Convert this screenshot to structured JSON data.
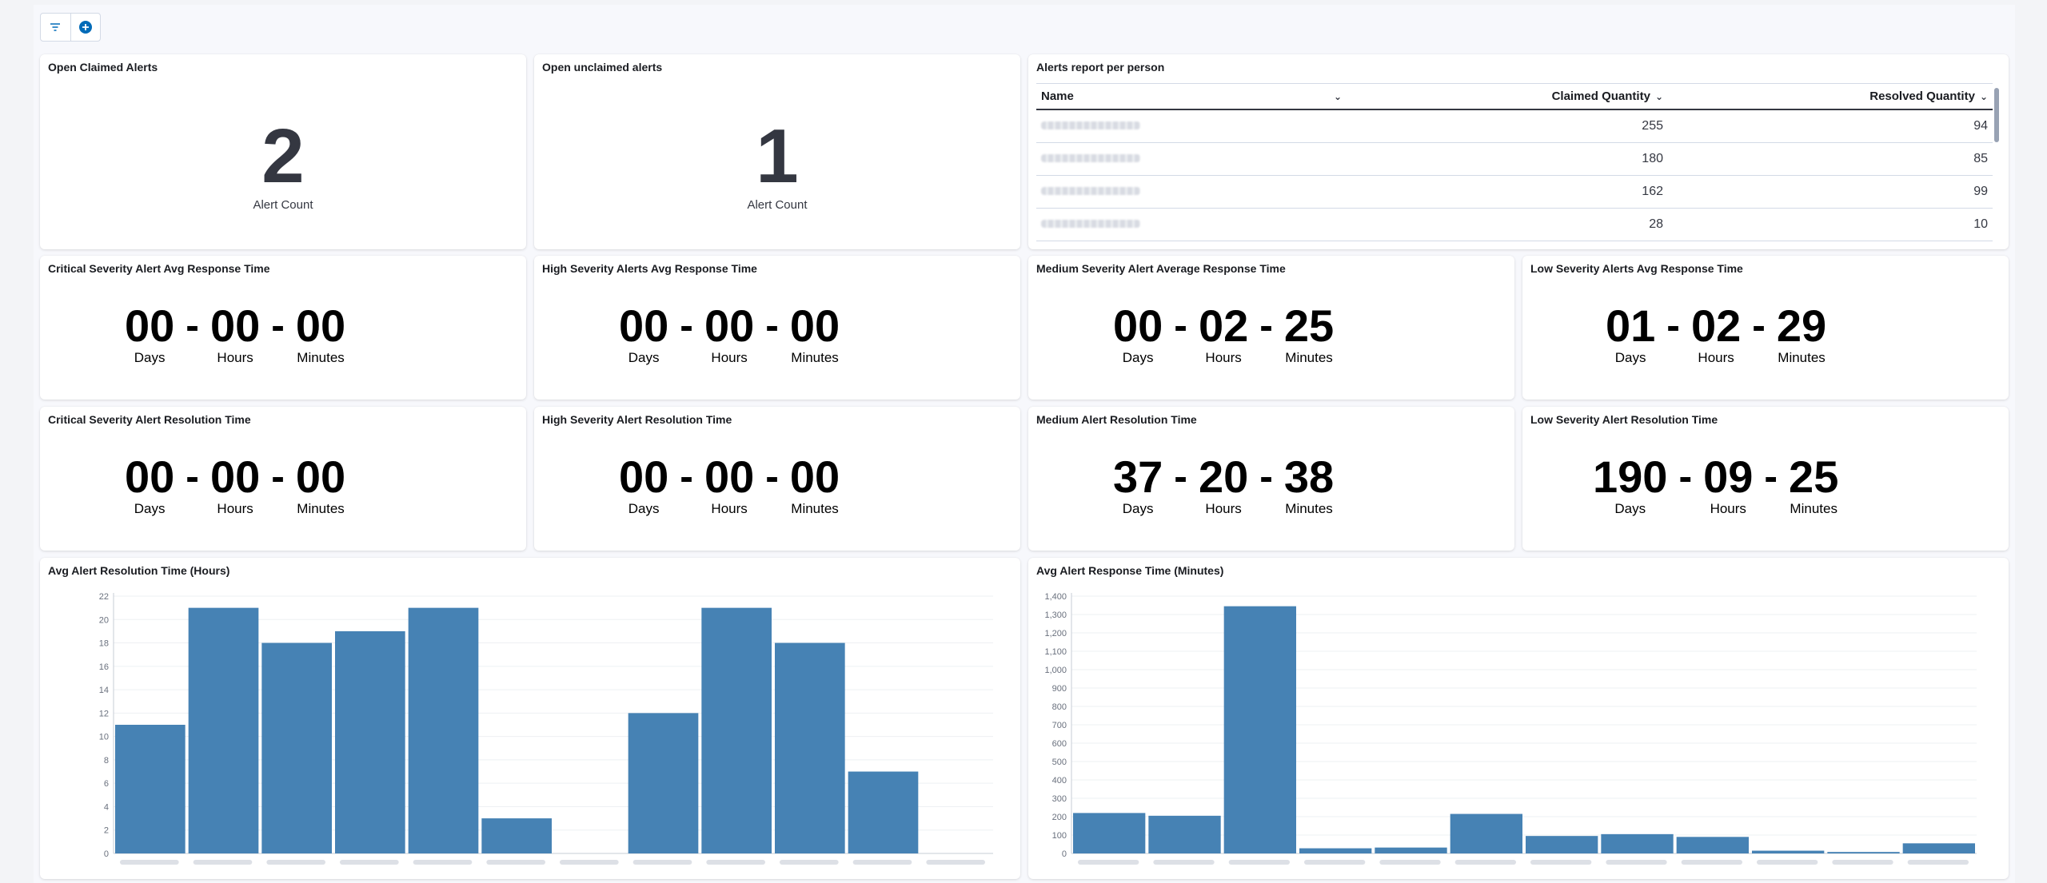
{
  "toolbar": {
    "filter_icon": "filter-icon",
    "add_icon": "plus-circle-icon"
  },
  "open_claimed": {
    "title": "Open Claimed Alerts",
    "value": "2",
    "label": "Alert Count"
  },
  "open_unclaimed": {
    "title": "Open unclaimed alerts",
    "value": "1",
    "label": "Alert Count"
  },
  "alerts_report": {
    "title": "Alerts report per person",
    "columns": [
      "Name",
      "Claimed Quantity",
      "Resolved Quantity"
    ],
    "rows": [
      {
        "claimed": "255",
        "resolved": "94"
      },
      {
        "claimed": "180",
        "resolved": "85"
      },
      {
        "claimed": "162",
        "resolved": "99"
      },
      {
        "claimed": "28",
        "resolved": "10"
      }
    ]
  },
  "units": {
    "days": "Days",
    "hours": "Hours",
    "minutes": "Minutes",
    "sep": "-"
  },
  "response_times": [
    {
      "title": "Critical Severity Alert Avg Response Time",
      "d": "00",
      "h": "00",
      "m": "00"
    },
    {
      "title": "High Severity Alerts Avg Response Time",
      "d": "00",
      "h": "00",
      "m": "00"
    },
    {
      "title": "Medium Severity Alert Average Response Time",
      "d": "00",
      "h": "02",
      "m": "25"
    },
    {
      "title": "Low Severity Alerts Avg Response Time",
      "d": "01",
      "h": "02",
      "m": "29"
    }
  ],
  "resolution_times": [
    {
      "title": "Critical Severity Alert Resolution Time",
      "d": "00",
      "h": "00",
      "m": "00"
    },
    {
      "title": "High Severity Alert Resolution Time",
      "d": "00",
      "h": "00",
      "m": "00"
    },
    {
      "title": "Medium Alert Resolution Time",
      "d": "37",
      "h": "20",
      "m": "38"
    },
    {
      "title": "Low Severity Alert Resolution Time",
      "d": "190",
      "h": "09",
      "m": "25"
    }
  ],
  "colors": {
    "bar": "#4682b4",
    "grid": "#eef0f3",
    "axis": "#69707d"
  },
  "chart_data": [
    {
      "type": "bar",
      "title": "Avg Alert Resolution Time (Hours)",
      "xlabel": "",
      "ylabel": "",
      "ylim": [
        0,
        22
      ],
      "yticks": [
        0,
        2,
        4,
        6,
        8,
        10,
        12,
        14,
        16,
        18,
        20,
        22
      ],
      "values": [
        11,
        21,
        18,
        19,
        21,
        3,
        0,
        12,
        21,
        18,
        7,
        0
      ]
    },
    {
      "type": "bar",
      "title": "Avg Alert Response Time (Minutes)",
      "xlabel": "",
      "ylabel": "",
      "ylim": [
        0,
        1400
      ],
      "yticks": [
        "0",
        "100",
        "200",
        "300",
        "400",
        "500",
        "600",
        "700",
        "800",
        "900",
        "1,000",
        "1,100",
        "1,200",
        "1,300",
        "1,400"
      ],
      "values": [
        220,
        205,
        1345,
        28,
        32,
        215,
        95,
        105,
        90,
        15,
        8,
        55
      ]
    }
  ]
}
